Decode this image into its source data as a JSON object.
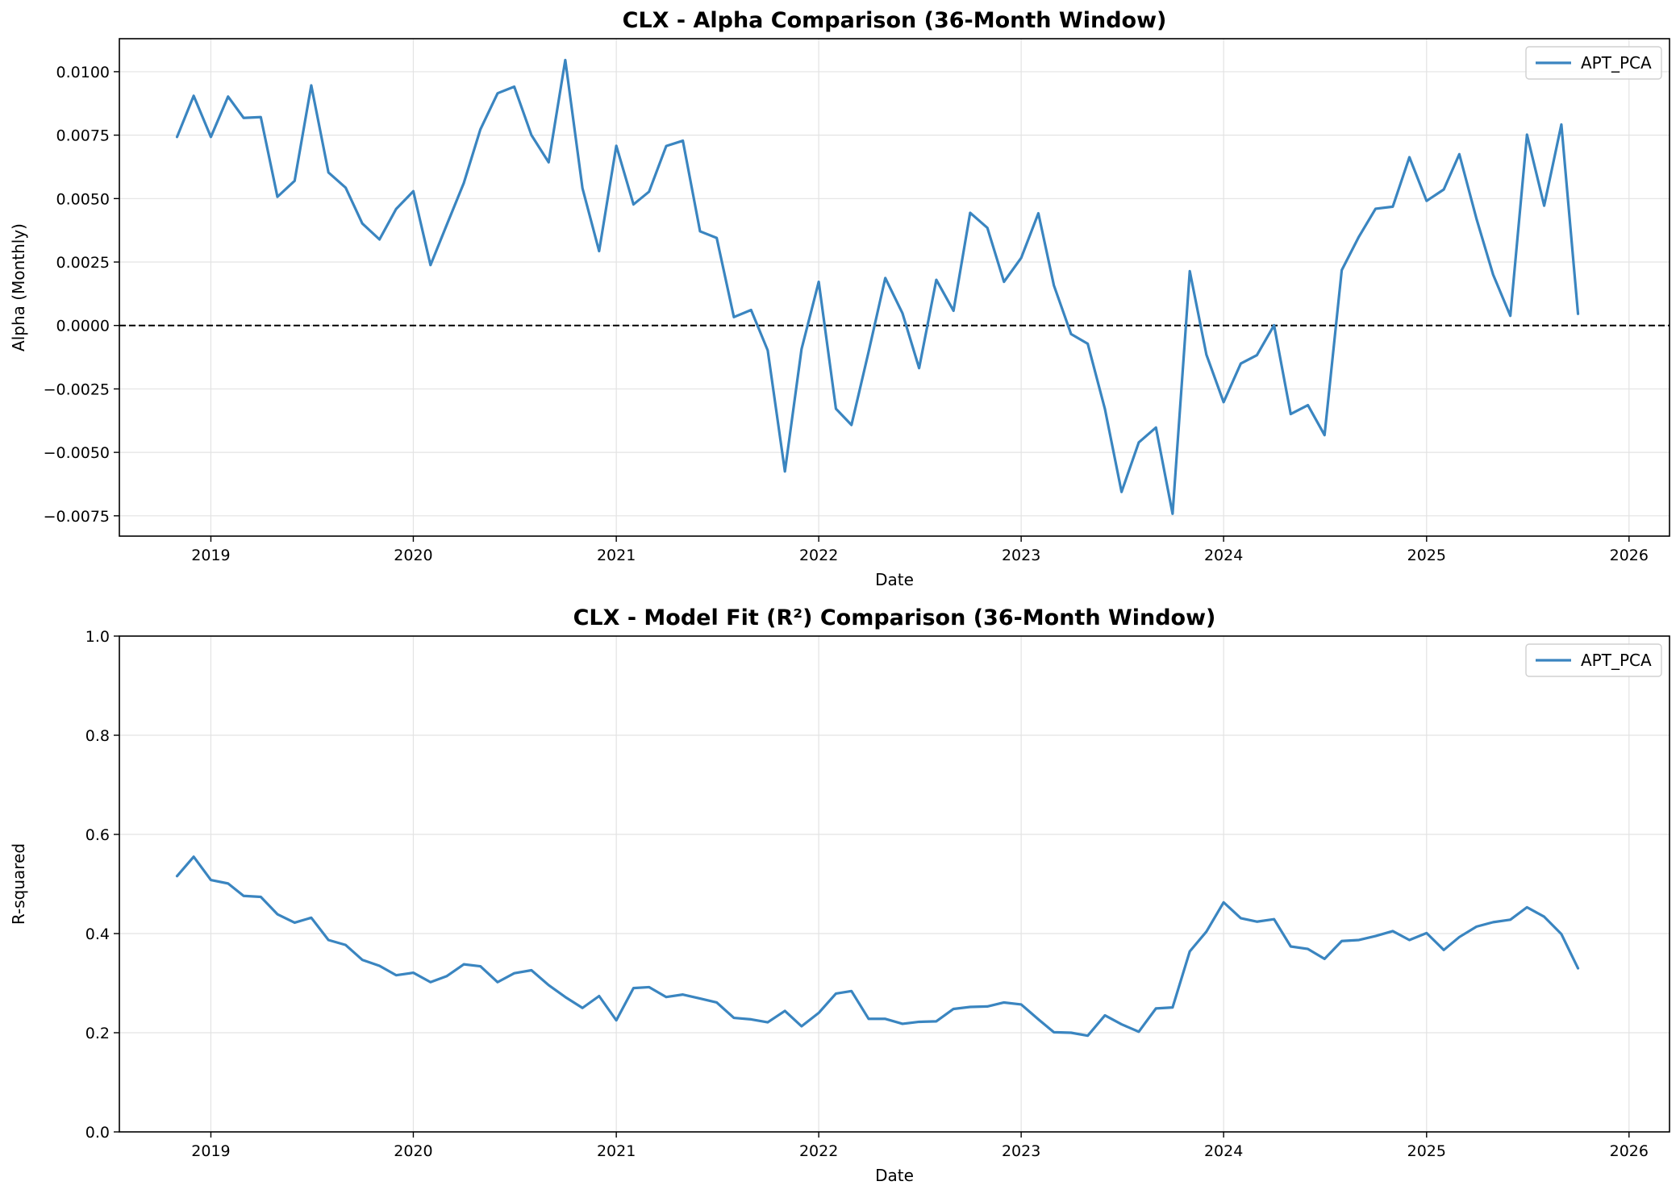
{
  "chart_data": [
    {
      "type": "line",
      "title": "CLX - Alpha Comparison (36-Month Window)",
      "xlabel": "Date",
      "ylabel": "Alpha (Monthly)",
      "xlim": [
        "2018-07-20",
        "2026-03-15"
      ],
      "ylim": [
        -0.0083,
        0.0113
      ],
      "x_ticks": [
        "2019",
        "2020",
        "2021",
        "2022",
        "2023",
        "2024",
        "2025",
        "2026"
      ],
      "y_ticks": [
        -0.0075,
        -0.005,
        -0.0025,
        0.0,
        0.0025,
        0.005,
        0.0075,
        0.01
      ],
      "y_tick_labels": [
        "−0.0075",
        "−0.0050",
        "−0.0025",
        "0.0000",
        "0.0025",
        "0.0050",
        "0.0075",
        "0.0100"
      ],
      "reference_line": 0.0,
      "grid": true,
      "legend_position": "upper right",
      "series": [
        {
          "name": "APT_PCA",
          "color": "#3a85c0",
          "start": "2018-11",
          "values": [
            0.00743,
            0.00905,
            0.00743,
            0.00902,
            0.00818,
            0.00821,
            0.00507,
            0.0057,
            0.00946,
            0.00603,
            0.00543,
            0.00402,
            0.00339,
            0.00459,
            0.00529,
            0.00238,
            0.00395,
            0.00561,
            0.00773,
            0.00915,
            0.00941,
            0.0075,
            0.00643,
            0.01046,
            0.00541,
            0.00293,
            0.00708,
            0.00477,
            0.00527,
            0.00707,
            0.00728,
            0.00371,
            0.00345,
            0.00033,
            0.00061,
            -0.00098,
            -0.00575,
            -0.00093,
            0.00172,
            -0.00328,
            -0.00392,
            -0.00103,
            0.00187,
            0.00048,
            -0.00168,
            0.0018,
            0.00058,
            0.00444,
            0.00385,
            0.00172,
            0.00266,
            0.00442,
            0.00158,
            -0.00034,
            -0.00072,
            -0.00329,
            -0.00656,
            -0.00461,
            -0.00402,
            -0.00742,
            0.00214,
            -0.00115,
            -0.00302,
            -0.0015,
            -0.00117,
            1e-05,
            -0.00349,
            -0.00314,
            -0.00432,
            0.00218,
            0.0035,
            0.0046,
            0.00468,
            0.00663,
            0.00491,
            0.00536,
            0.00675,
            0.0042,
            0.002,
            0.00038,
            0.00752,
            0.00472,
            0.00792,
            0.00046
          ]
        }
      ]
    },
    {
      "type": "line",
      "title": "CLX - Model Fit (R²) Comparison (36-Month Window)",
      "xlabel": "Date",
      "ylabel": "R-squared",
      "xlim": [
        "2018-07-20",
        "2026-03-15"
      ],
      "ylim": [
        0.0,
        1.0
      ],
      "x_ticks": [
        "2019",
        "2020",
        "2021",
        "2022",
        "2023",
        "2024",
        "2025",
        "2026"
      ],
      "y_ticks": [
        0.0,
        0.2,
        0.4,
        0.6,
        0.8,
        1.0
      ],
      "y_tick_labels": [
        "0.0",
        "0.2",
        "0.4",
        "0.6",
        "0.8",
        "1.0"
      ],
      "grid": true,
      "legend_position": "upper right",
      "series": [
        {
          "name": "APT_PCA",
          "color": "#3a85c0",
          "start": "2018-11",
          "values": [
            0.516,
            0.555,
            0.508,
            0.501,
            0.476,
            0.474,
            0.439,
            0.422,
            0.432,
            0.387,
            0.377,
            0.347,
            0.335,
            0.316,
            0.321,
            0.302,
            0.314,
            0.338,
            0.334,
            0.302,
            0.32,
            0.326,
            0.296,
            0.272,
            0.25,
            0.274,
            0.225,
            0.29,
            0.292,
            0.272,
            0.277,
            0.269,
            0.261,
            0.23,
            0.227,
            0.221,
            0.244,
            0.213,
            0.24,
            0.279,
            0.284,
            0.228,
            0.228,
            0.218,
            0.222,
            0.223,
            0.248,
            0.252,
            0.253,
            0.261,
            0.257,
            0.227,
            0.201,
            0.2,
            0.194,
            0.235,
            0.217,
            0.202,
            0.249,
            0.251,
            0.364,
            0.404,
            0.463,
            0.431,
            0.424,
            0.429,
            0.374,
            0.369,
            0.349,
            0.385,
            0.387,
            0.395,
            0.405,
            0.387,
            0.401,
            0.367,
            0.393,
            0.414,
            0.423,
            0.428,
            0.453,
            0.434,
            0.399,
            0.33
          ]
        }
      ]
    }
  ]
}
